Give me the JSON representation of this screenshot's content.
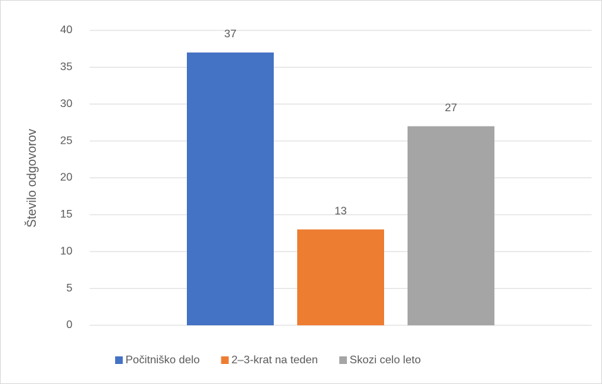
{
  "chart_data": {
    "type": "bar",
    "y_label": "Število odgovorov",
    "categories": [
      null
    ],
    "series": [
      {
        "name": "Počitniško delo",
        "color": "#4472c4",
        "values": [
          37
        ]
      },
      {
        "name": "2–3-krat na teden",
        "color": "#ed7d31",
        "values": [
          13
        ]
      },
      {
        "name": "Skozi celo leto",
        "color": "#a5a5a5",
        "values": [
          27
        ]
      }
    ],
    "ylim": [
      0,
      40
    ],
    "yticks": [
      0,
      5,
      10,
      15,
      20,
      25,
      30,
      35,
      40
    ],
    "grid": true,
    "legend": "bottom"
  }
}
